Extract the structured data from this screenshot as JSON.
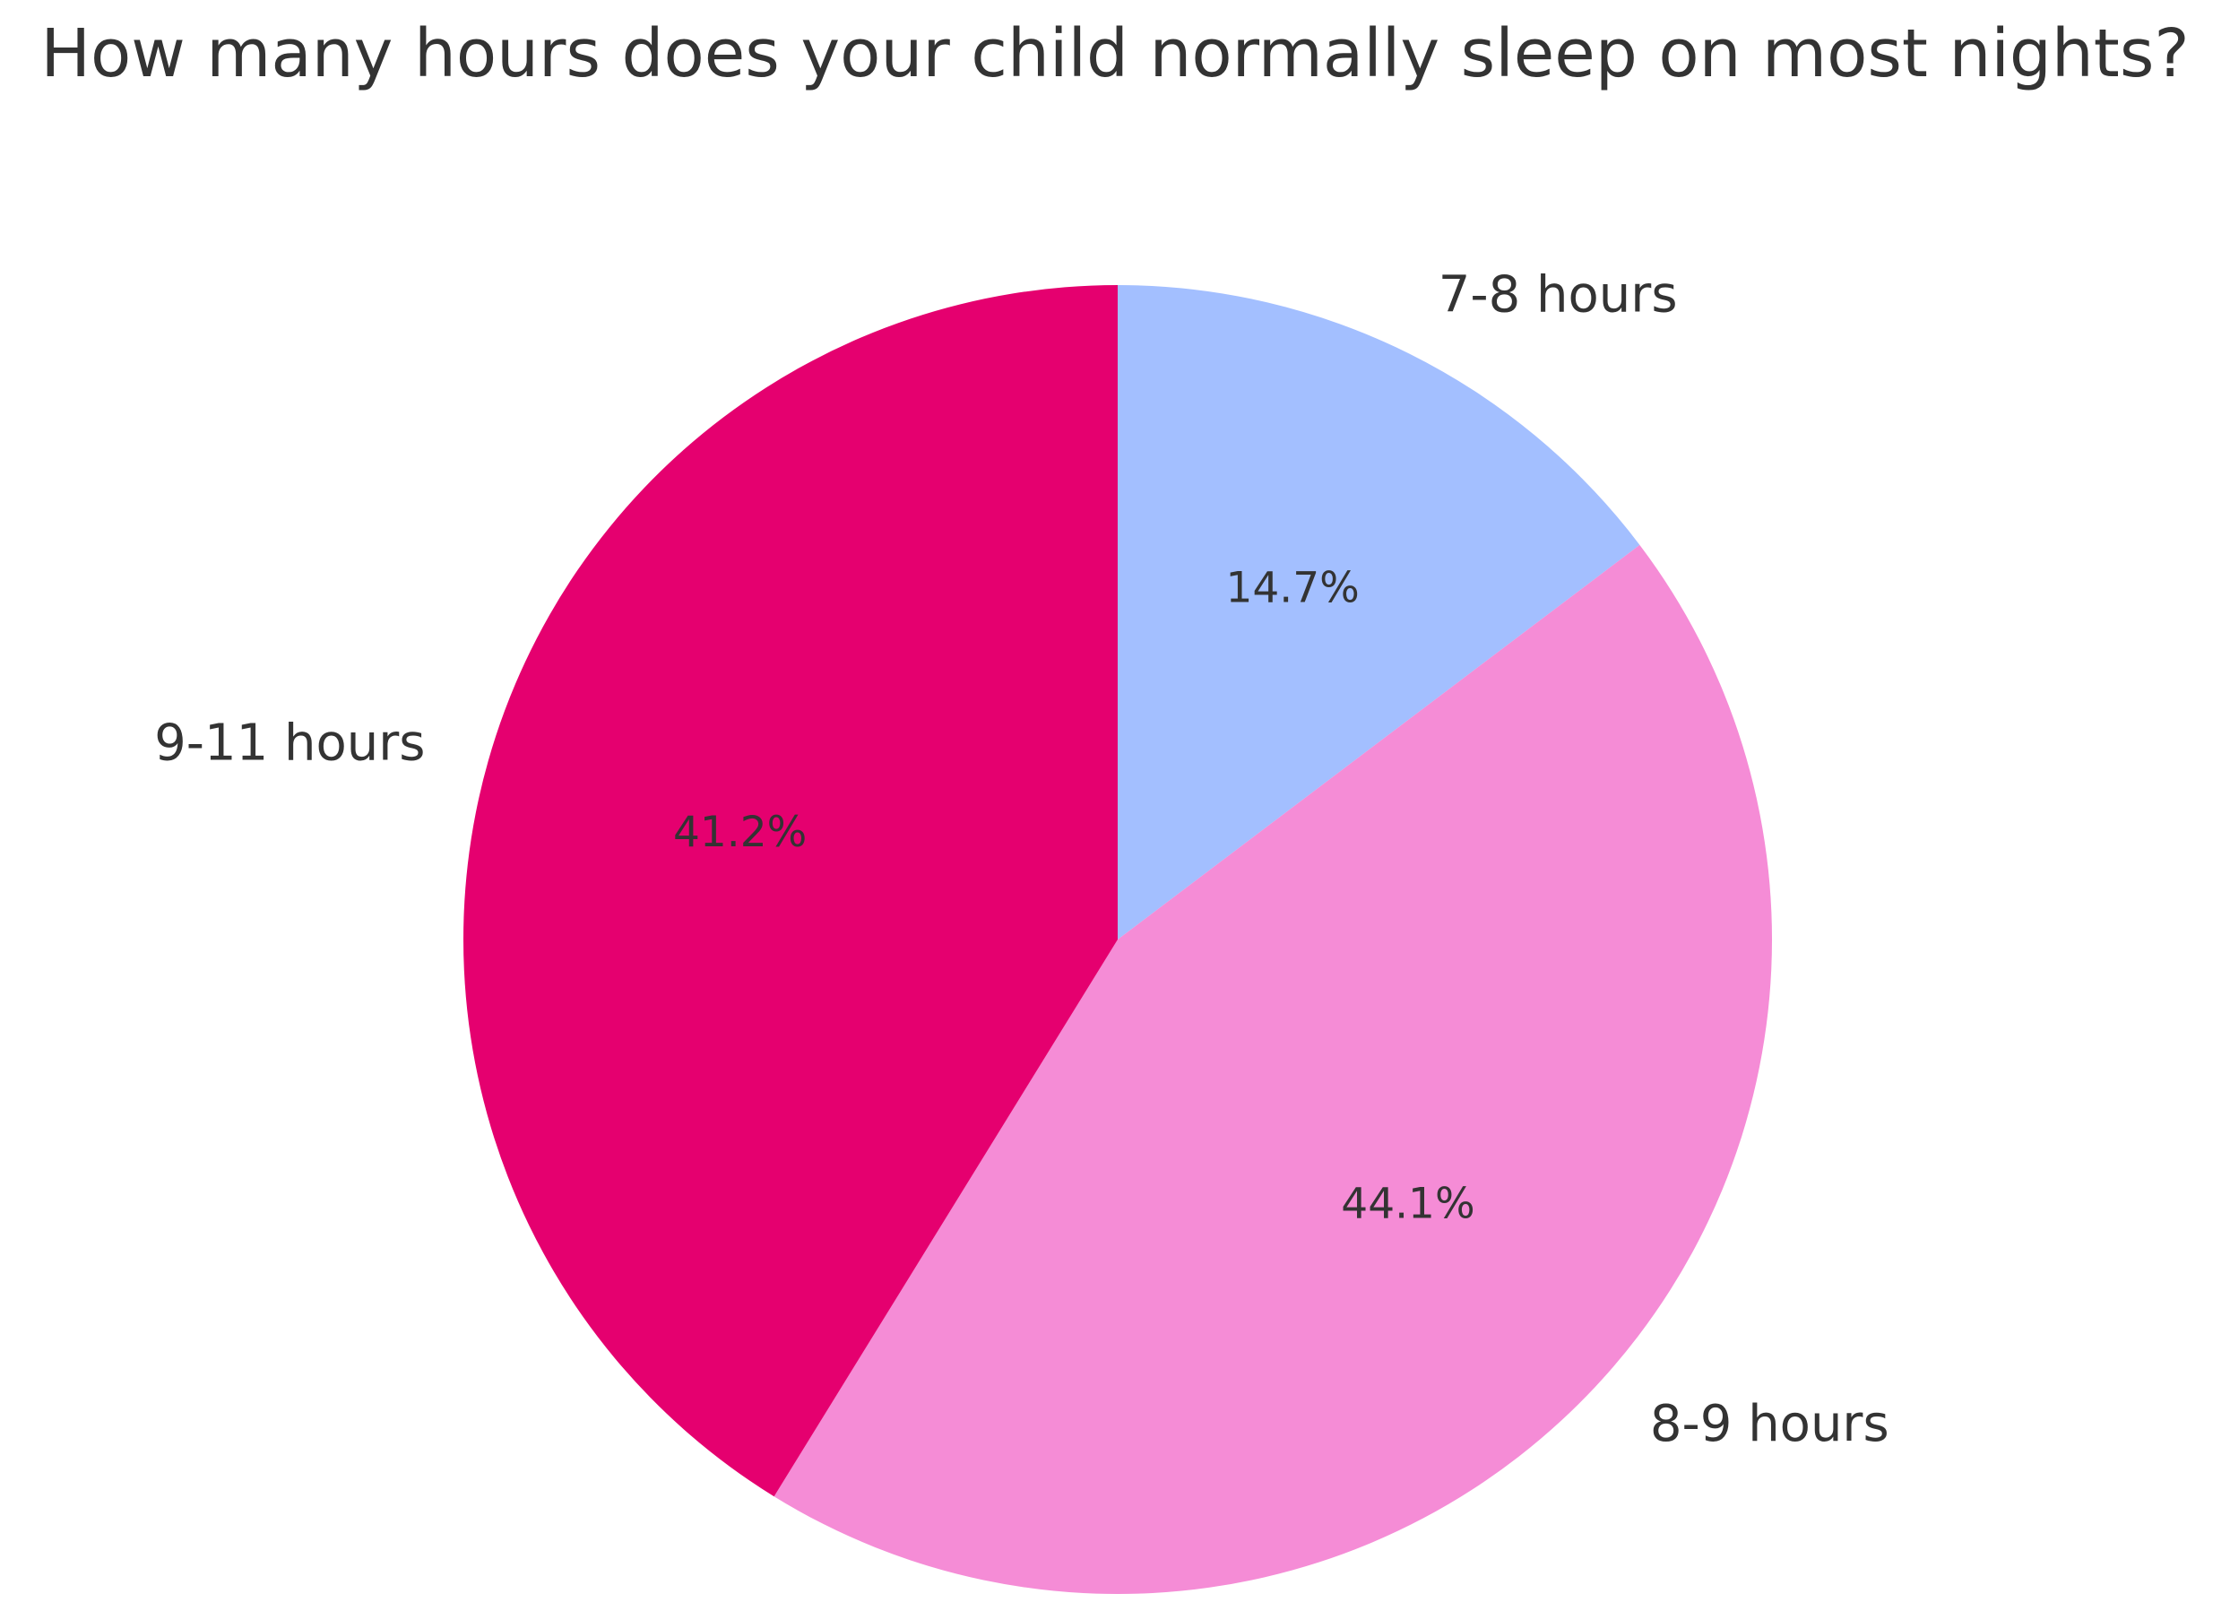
{
  "chart_data": {
    "type": "pie",
    "title": "How many hours does your child normally sleep on most nights?",
    "start_angle": "top, clockwise",
    "slices": [
      {
        "label": "7-8 hours",
        "value": 14.7,
        "value_label": "14.7%",
        "color": "#a3bfff"
      },
      {
        "label": "8-9 hours",
        "value": 44.1,
        "value_label": "44.1%",
        "color": "#f58cd6"
      },
      {
        "label": "9-11 hours",
        "value": 41.2,
        "value_label": "41.2%",
        "color": "#e5006f"
      }
    ]
  }
}
